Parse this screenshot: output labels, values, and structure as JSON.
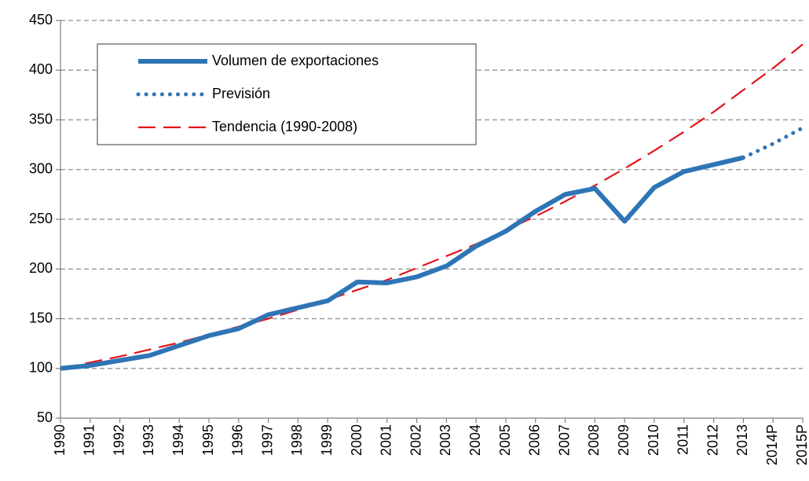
{
  "chart_data": {
    "type": "line",
    "categories": [
      "1990",
      "1991",
      "1992",
      "1993",
      "1994",
      "1995",
      "1996",
      "1997",
      "1998",
      "1999",
      "2000",
      "2001",
      "2002",
      "2003",
      "2004",
      "2005",
      "2006",
      "2007",
      "2008",
      "2009",
      "2010",
      "2011",
      "2012",
      "2013",
      "2014P",
      "2015P"
    ],
    "series": [
      {
        "name": "Volumen de exportaciones",
        "color": "#2e75b6",
        "style": "solid",
        "values": [
          100,
          103,
          108,
          113,
          123,
          133,
          140,
          154,
          161,
          168,
          187,
          186,
          192,
          203,
          223,
          238,
          258,
          275,
          281,
          248,
          282,
          298,
          305,
          312,
          null,
          null
        ]
      },
      {
        "name": "Previsión",
        "color": "#2e75b6",
        "style": "dotted",
        "values": [
          null,
          null,
          null,
          null,
          null,
          null,
          null,
          null,
          null,
          null,
          null,
          null,
          null,
          null,
          null,
          null,
          null,
          null,
          null,
          null,
          null,
          null,
          null,
          312,
          326,
          342
        ]
      },
      {
        "name": "Tendencia (1990-2008)",
        "color": "#e3141b",
        "style": "dashed",
        "values": [
          100,
          106,
          112,
          119,
          126,
          134,
          142,
          150,
          159,
          169,
          179,
          189,
          201,
          213,
          225,
          239,
          253,
          268,
          284,
          301,
          319,
          338,
          358,
          380,
          402,
          426
        ]
      }
    ],
    "ylim": [
      50,
      450
    ],
    "yticks": [
      50,
      100,
      150,
      200,
      250,
      300,
      350,
      400,
      450
    ],
    "grid": true,
    "legend": "upper left"
  }
}
